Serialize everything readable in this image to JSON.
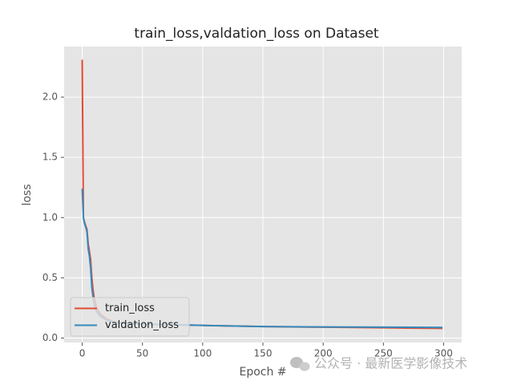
{
  "chart_data": {
    "type": "line",
    "title": "train_loss,valdation_loss on Dataset",
    "xlabel": "Epoch #",
    "ylabel": "loss",
    "x": [
      0,
      1,
      2,
      3,
      4,
      5,
      6,
      7,
      8,
      9,
      10,
      12,
      15,
      20,
      25,
      30,
      40,
      50,
      75,
      100,
      150,
      200,
      250,
      299
    ],
    "series": [
      {
        "name": "train_loss",
        "color": "#E24A33",
        "values": [
          2.31,
          1.0,
          0.96,
          0.93,
          0.9,
          0.78,
          0.72,
          0.65,
          0.5,
          0.4,
          0.33,
          0.25,
          0.2,
          0.16,
          0.14,
          0.13,
          0.12,
          0.115,
          0.11,
          0.105,
          0.095,
          0.09,
          0.085,
          0.08
        ]
      },
      {
        "name": "valdation_loss",
        "color": "#348ABD",
        "values": [
          1.24,
          1.0,
          0.95,
          0.92,
          0.88,
          0.74,
          0.68,
          0.58,
          0.42,
          0.34,
          0.28,
          0.22,
          0.18,
          0.15,
          0.135,
          0.125,
          0.12,
          0.115,
          0.11,
          0.105,
          0.095,
          0.092,
          0.09,
          0.088
        ]
      }
    ],
    "xlim": [
      -15,
      315
    ],
    "xticks": [
      0,
      50,
      100,
      150,
      200,
      250,
      300
    ],
    "ylim": [
      -0.037,
      2.42
    ],
    "yticks": [
      {
        "value": 0,
        "label": "0.0"
      },
      0.5,
      {
        "value": 1,
        "label": "1.0"
      },
      1.5,
      {
        "value": 2,
        "label": "2.0"
      }
    ],
    "grid": true,
    "legend": "lower left",
    "watermark": "公众号 · 最新医学影像技术"
  }
}
